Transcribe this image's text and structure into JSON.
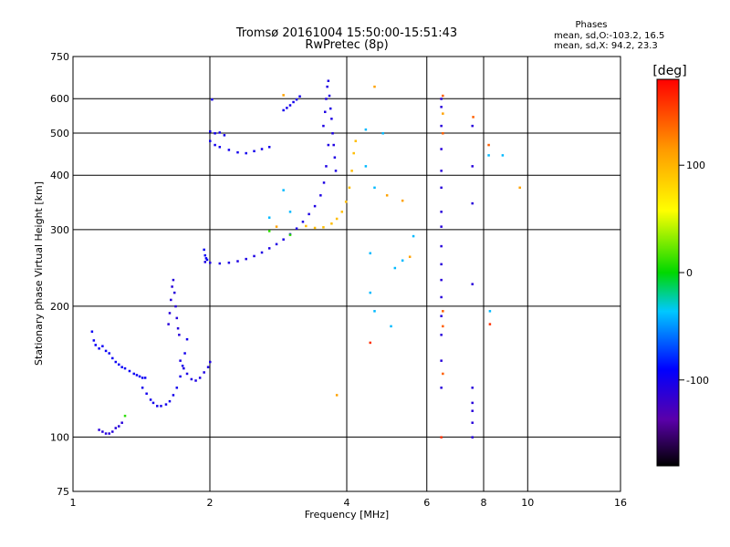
{
  "chart_data": {
    "type": "scatter",
    "title": "Tromsø 20161004 15:50:00-15:51:43",
    "subtitle": "RwPretec (8p)",
    "xlabel": "Frequency [MHz]",
    "ylabel": "Stationary phase Virtual Height [km]",
    "x_scale": "log",
    "y_scale": "log",
    "xlim": [
      1,
      16
    ],
    "ylim": [
      75,
      750
    ],
    "x_ticks": [
      1,
      2,
      4,
      6,
      8,
      10,
      16
    ],
    "y_ticks": [
      75,
      100,
      200,
      300,
      400,
      500,
      600,
      750
    ],
    "grid": true,
    "legend": {
      "title": "Phases",
      "lines": [
        "mean, sd,O:-103.2, 16.5",
        "mean, sd,X:  94.2, 23.3"
      ]
    },
    "colorbar": {
      "label": "[deg]",
      "range": [
        -180,
        180
      ],
      "ticks": [
        100,
        0,
        -100
      ]
    },
    "series": [
      {
        "values": [
          [
            1.1,
            175
          ],
          [
            1.11,
            167
          ],
          [
            1.12,
            163
          ],
          [
            1.14,
            160
          ],
          [
            1.16,
            162
          ],
          [
            1.18,
            158
          ],
          [
            1.2,
            156
          ],
          [
            1.22,
            152
          ],
          [
            1.24,
            149
          ],
          [
            1.26,
            147
          ],
          [
            1.28,
            145
          ],
          [
            1.3,
            144
          ],
          [
            1.33,
            142
          ],
          [
            1.36,
            140
          ],
          [
            1.38,
            139
          ],
          [
            1.4,
            138
          ],
          [
            1.42,
            137
          ],
          [
            1.44,
            137
          ]
        ],
        "phase": -95
      },
      {
        "values": [
          [
            1.14,
            104
          ],
          [
            1.16,
            103
          ],
          [
            1.18,
            102
          ],
          [
            1.2,
            102
          ],
          [
            1.22,
            103
          ],
          [
            1.24,
            105
          ],
          [
            1.26,
            106
          ],
          [
            1.28,
            108
          ]
        ],
        "phase": -110
      },
      {
        "values": [
          [
            1.42,
            130
          ],
          [
            1.45,
            126
          ],
          [
            1.48,
            122
          ],
          [
            1.5,
            120
          ],
          [
            1.53,
            118
          ],
          [
            1.56,
            118
          ],
          [
            1.6,
            119
          ],
          [
            1.63,
            121
          ],
          [
            1.66,
            125
          ],
          [
            1.69,
            130
          ],
          [
            1.72,
            138
          ],
          [
            1.74,
            146
          ],
          [
            1.76,
            156
          ],
          [
            1.78,
            168
          ]
        ],
        "phase": -100
      },
      {
        "values": [
          [
            1.62,
            182
          ],
          [
            1.63,
            193
          ],
          [
            1.64,
            207
          ],
          [
            1.65,
            222
          ],
          [
            1.66,
            230
          ],
          [
            1.67,
            215
          ],
          [
            1.68,
            200
          ],
          [
            1.69,
            188
          ],
          [
            1.7,
            178
          ],
          [
            1.71,
            172
          ]
        ],
        "phase": -110
      },
      {
        "values": [
          [
            1.72,
            150
          ],
          [
            1.75,
            144
          ],
          [
            1.78,
            140
          ],
          [
            1.82,
            136
          ],
          [
            1.86,
            135
          ],
          [
            1.9,
            137
          ],
          [
            1.94,
            141
          ],
          [
            1.98,
            145
          ],
          [
            2.0,
            149
          ]
        ],
        "phase": -105
      },
      {
        "values": [
          [
            1.94,
            270
          ],
          [
            1.95,
            262
          ],
          [
            1.96,
            258
          ],
          [
            1.97,
            256
          ]
        ],
        "phase": -95
      },
      {
        "values": [
          [
            1.95,
            253
          ],
          [
            2.0,
            252
          ],
          [
            2.1,
            251
          ],
          [
            2.2,
            252
          ],
          [
            2.3,
            254
          ],
          [
            2.4,
            257
          ],
          [
            2.5,
            261
          ],
          [
            2.6,
            266
          ],
          [
            2.7,
            272
          ],
          [
            2.8,
            278
          ],
          [
            2.9,
            285
          ],
          [
            3.0,
            293
          ],
          [
            3.1,
            302
          ],
          [
            3.2,
            313
          ],
          [
            3.3,
            326
          ],
          [
            3.4,
            340
          ],
          [
            3.5,
            360
          ],
          [
            3.56,
            385
          ],
          [
            3.6,
            420
          ],
          [
            3.64,
            470
          ]
        ],
        "phase": -105
      },
      {
        "values": [
          [
            3.25,
            306
          ],
          [
            3.4,
            303
          ],
          [
            3.55,
            304
          ],
          [
            3.7,
            310
          ],
          [
            3.8,
            318
          ],
          [
            3.9,
            330
          ],
          [
            3.98,
            348
          ],
          [
            4.05,
            375
          ],
          [
            4.1,
            410
          ],
          [
            4.14,
            450
          ],
          [
            4.18,
            480
          ]
        ],
        "phase": 95
      },
      {
        "values": [
          [
            3.55,
            520
          ],
          [
            3.58,
            560
          ],
          [
            3.6,
            600
          ],
          [
            3.62,
            640
          ],
          [
            3.64,
            660
          ],
          [
            3.66,
            610
          ],
          [
            3.68,
            570
          ],
          [
            3.7,
            540
          ],
          [
            3.72,
            500
          ],
          [
            3.74,
            470
          ],
          [
            3.76,
            440
          ],
          [
            3.78,
            410
          ]
        ],
        "phase": -105
      },
      {
        "values": [
          [
            2.0,
            505
          ],
          [
            2.05,
            500
          ],
          [
            2.1,
            502
          ],
          [
            2.15,
            495
          ],
          [
            2.0,
            480
          ],
          [
            2.05,
            470
          ],
          [
            2.1,
            465
          ],
          [
            2.2,
            458
          ],
          [
            2.3,
            452
          ],
          [
            2.4,
            450
          ],
          [
            2.5,
            455
          ],
          [
            2.6,
            460
          ],
          [
            2.7,
            465
          ],
          [
            2.02,
            598
          ]
        ],
        "phase": -100
      },
      {
        "values": [
          [
            2.9,
            565
          ],
          [
            2.95,
            572
          ],
          [
            3.0,
            580
          ],
          [
            3.05,
            590
          ],
          [
            3.1,
            598
          ],
          [
            3.15,
            608
          ]
        ],
        "phase": -100
      },
      {
        "values": [
          [
            6.45,
            130
          ],
          [
            6.45,
            150
          ],
          [
            6.45,
            172
          ],
          [
            6.45,
            190
          ],
          [
            6.45,
            210
          ],
          [
            6.45,
            230
          ],
          [
            6.45,
            250
          ],
          [
            6.45,
            275
          ],
          [
            6.45,
            305
          ],
          [
            6.45,
            330
          ],
          [
            6.45,
            375
          ],
          [
            6.45,
            410
          ],
          [
            6.45,
            460
          ],
          [
            6.45,
            520
          ],
          [
            6.45,
            575
          ],
          [
            6.45,
            600
          ],
          [
            7.55,
            100
          ],
          [
            7.55,
            108
          ],
          [
            7.55,
            115
          ],
          [
            7.55,
            120
          ],
          [
            7.55,
            130
          ],
          [
            7.55,
            225
          ],
          [
            7.55,
            345
          ],
          [
            7.55,
            420
          ],
          [
            7.55,
            520
          ]
        ],
        "phase": -110
      },
      {
        "values": [
          [
            6.5,
            140
          ],
          [
            6.5,
            180
          ],
          [
            6.5,
            195
          ],
          [
            6.5,
            500
          ],
          [
            6.5,
            610
          ],
          [
            7.58,
            545
          ],
          [
            8.2,
            470
          ]
        ],
        "phase": 140
      },
      {
        "values": [
          [
            4.5,
            265
          ],
          [
            4.5,
            215
          ],
          [
            4.6,
            195
          ],
          [
            5.0,
            180
          ],
          [
            5.1,
            245
          ],
          [
            5.3,
            255
          ],
          [
            5.6,
            290
          ],
          [
            8.25,
            195
          ],
          [
            8.2,
            445
          ],
          [
            8.8,
            445
          ],
          [
            2.7,
            320
          ],
          [
            2.9,
            370
          ],
          [
            3.0,
            330
          ],
          [
            4.4,
            420
          ],
          [
            4.4,
            510
          ],
          [
            4.6,
            375
          ],
          [
            4.8,
            500
          ]
        ],
        "phase": -40
      },
      {
        "values": [
          [
            4.6,
            640
          ],
          [
            4.9,
            360
          ],
          [
            5.3,
            350
          ],
          [
            5.5,
            260
          ],
          [
            6.5,
            555
          ],
          [
            9.6,
            375
          ],
          [
            3.8,
            125
          ],
          [
            2.9,
            612
          ],
          [
            2.8,
            305
          ]
        ],
        "phase": 110
      },
      {
        "values": [
          [
            4.5,
            165
          ],
          [
            8.25,
            182
          ],
          [
            6.45,
            100
          ]
        ],
        "phase": 160
      },
      {
        "values": [
          [
            1.3,
            112
          ],
          [
            2.7,
            298
          ],
          [
            3.0,
            292
          ]
        ],
        "phase": 10
      }
    ]
  }
}
